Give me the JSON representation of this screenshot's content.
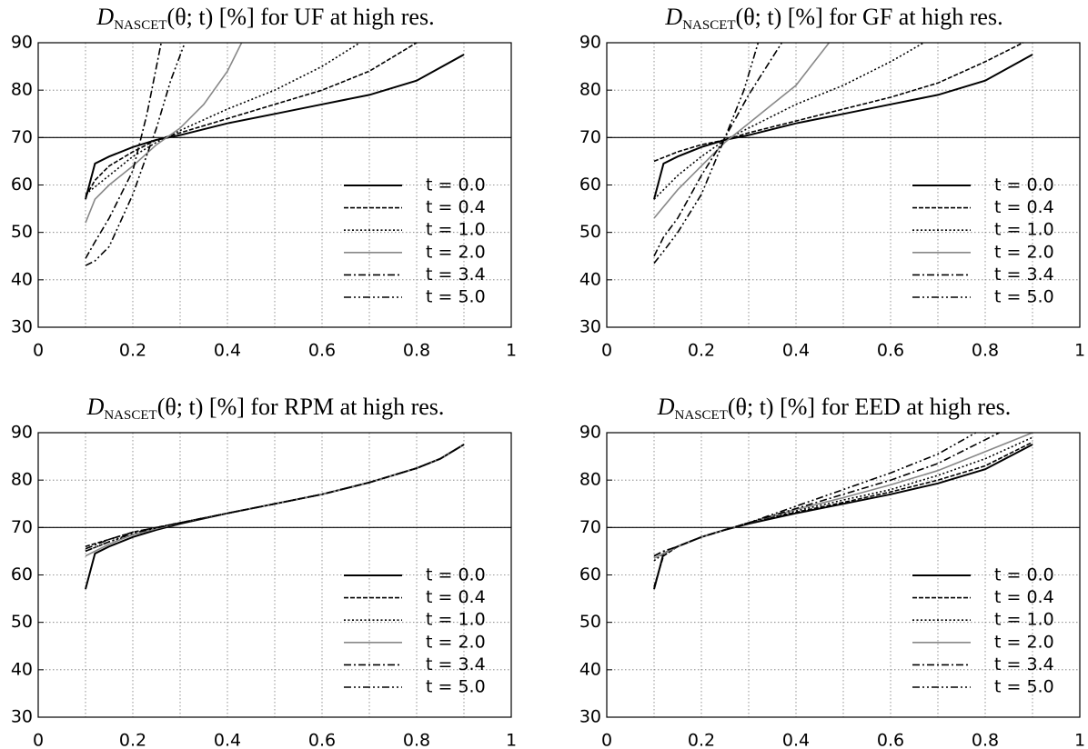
{
  "chart_data": [
    {
      "type": "line",
      "title_parts": [
        "D",
        "NASCET",
        "(θ; t) [%] for UF at high res."
      ],
      "xlim": [
        0,
        1
      ],
      "xticks": [
        0,
        0.2,
        0.4,
        0.6,
        0.8,
        1
      ],
      "xgrid": [
        0.1,
        0.3,
        0.5,
        0.7,
        0.9
      ],
      "ylim": [
        30,
        90
      ],
      "yticks": [
        30,
        40,
        50,
        60,
        70,
        80,
        90
      ],
      "grid": true,
      "hline": 70,
      "legend": "lower right",
      "series": [
        {
          "name": "t = 0.0",
          "color": "#000000",
          "style": "solid",
          "x": [
            0.1,
            0.12,
            0.15,
            0.2,
            0.25,
            0.3,
            0.4,
            0.5,
            0.6,
            0.7,
            0.8,
            0.9
          ],
          "values": [
            57,
            64.5,
            66,
            68,
            69.5,
            70.5,
            73,
            75,
            77,
            79,
            82,
            87.5
          ]
        },
        {
          "name": "t = 0.4",
          "color": "#000000",
          "style": "dashed",
          "x": [
            0.1,
            0.12,
            0.15,
            0.2,
            0.25,
            0.3,
            0.4,
            0.5,
            0.6,
            0.7,
            0.8
          ],
          "values": [
            57.5,
            61,
            64,
            67,
            69.5,
            71,
            74,
            77,
            80,
            84,
            90
          ]
        },
        {
          "name": "t = 1.0",
          "color": "#000000",
          "style": "dotted",
          "x": [
            0.1,
            0.15,
            0.2,
            0.25,
            0.3,
            0.4,
            0.5,
            0.6,
            0.68
          ],
          "values": [
            58,
            62,
            66,
            69,
            71.5,
            76,
            80,
            85,
            90
          ]
        },
        {
          "name": "t = 2.0",
          "color": "#888888",
          "style": "solid",
          "x": [
            0.1,
            0.12,
            0.15,
            0.2,
            0.25,
            0.3,
            0.35,
            0.4,
            0.43
          ],
          "values": [
            52,
            57,
            60,
            64,
            68.5,
            72,
            77,
            84,
            90
          ]
        },
        {
          "name": "t = 3.4",
          "color": "#000000",
          "style": "dashdot",
          "x": [
            0.1,
            0.12,
            0.15,
            0.2,
            0.23,
            0.26
          ],
          "values": [
            44.5,
            48,
            53,
            63,
            75,
            90
          ]
        },
        {
          "name": "t = 5.0",
          "color": "#000000",
          "style": "dashdotdot",
          "x": [
            0.1,
            0.12,
            0.15,
            0.2,
            0.25,
            0.28,
            0.31
          ],
          "values": [
            43,
            44,
            47,
            58,
            72,
            82,
            90
          ]
        }
      ]
    },
    {
      "type": "line",
      "title_parts": [
        "D",
        "NASCET",
        "(θ; t) [%] for GF at high res."
      ],
      "xlim": [
        0,
        1
      ],
      "xticks": [
        0,
        0.2,
        0.4,
        0.6,
        0.8,
        1
      ],
      "xgrid": [
        0.1,
        0.3,
        0.5,
        0.7,
        0.9
      ],
      "ylim": [
        30,
        90
      ],
      "yticks": [
        30,
        40,
        50,
        60,
        70,
        80,
        90
      ],
      "grid": true,
      "hline": 70,
      "legend": "lower right",
      "series": [
        {
          "name": "t = 0.0",
          "color": "#000000",
          "style": "solid",
          "x": [
            0.1,
            0.12,
            0.15,
            0.2,
            0.25,
            0.3,
            0.4,
            0.5,
            0.6,
            0.7,
            0.8,
            0.9
          ],
          "values": [
            57,
            64.5,
            66,
            68,
            69.5,
            70.5,
            73,
            75,
            77,
            79,
            82,
            87.5
          ]
        },
        {
          "name": "t = 0.4",
          "color": "#000000",
          "style": "dashed",
          "x": [
            0.1,
            0.15,
            0.2,
            0.25,
            0.3,
            0.4,
            0.5,
            0.6,
            0.7,
            0.8,
            0.88
          ],
          "values": [
            65,
            67,
            68.5,
            69.5,
            71,
            73.5,
            76,
            78.5,
            81.5,
            86,
            90
          ]
        },
        {
          "name": "t = 1.0",
          "color": "#000000",
          "style": "dotted",
          "x": [
            0.1,
            0.15,
            0.2,
            0.25,
            0.3,
            0.4,
            0.5,
            0.6,
            0.67
          ],
          "values": [
            57,
            62,
            66,
            69.5,
            72,
            77,
            81,
            86,
            90
          ]
        },
        {
          "name": "t = 2.0",
          "color": "#888888",
          "style": "solid",
          "x": [
            0.1,
            0.15,
            0.2,
            0.25,
            0.3,
            0.35,
            0.4,
            0.47
          ],
          "values": [
            53,
            59,
            64,
            69,
            73,
            77,
            81,
            90
          ]
        },
        {
          "name": "t = 3.4",
          "color": "#000000",
          "style": "dashdot",
          "x": [
            0.1,
            0.12,
            0.15,
            0.2,
            0.25,
            0.3,
            0.37
          ],
          "values": [
            45,
            49,
            53,
            62,
            70,
            79,
            90
          ]
        },
        {
          "name": "t = 5.0",
          "color": "#000000",
          "style": "dashdotdot",
          "x": [
            0.1,
            0.12,
            0.15,
            0.2,
            0.25,
            0.29,
            0.32
          ],
          "values": [
            43.5,
            46,
            50,
            58,
            70,
            80,
            90
          ]
        }
      ]
    },
    {
      "type": "line",
      "title_parts": [
        "D",
        "NASCET",
        "(θ; t) [%] for RPM at high res."
      ],
      "xlim": [
        0,
        1
      ],
      "xticks": [
        0,
        0.2,
        0.4,
        0.6,
        0.8,
        1
      ],
      "xgrid": [
        0.1,
        0.3,
        0.5,
        0.7,
        0.9
      ],
      "ylim": [
        30,
        90
      ],
      "yticks": [
        30,
        40,
        50,
        60,
        70,
        80,
        90
      ],
      "grid": true,
      "hline": 70,
      "legend": "lower right",
      "series": [
        {
          "name": "t = 0.0",
          "color": "#000000",
          "style": "solid",
          "x": [
            0.1,
            0.12,
            0.15,
            0.2,
            0.25,
            0.3,
            0.4,
            0.5,
            0.6,
            0.7,
            0.8,
            0.85,
            0.9
          ],
          "values": [
            57,
            64.5,
            66,
            68,
            69.5,
            70.8,
            73,
            75,
            77,
            79.5,
            82.5,
            84.5,
            87.5
          ]
        },
        {
          "name": "t = 0.4",
          "color": "#000000",
          "style": "dashed",
          "x": [
            0.1,
            0.15,
            0.2,
            0.3,
            0.4,
            0.5,
            0.6,
            0.7,
            0.8,
            0.85,
            0.9
          ],
          "values": [
            66,
            67.5,
            69,
            71,
            73,
            75,
            77,
            79.5,
            82.5,
            84.5,
            87.5
          ]
        },
        {
          "name": "t = 1.0",
          "color": "#000000",
          "style": "dotted",
          "x": [
            0.1,
            0.15,
            0.2,
            0.3,
            0.4,
            0.5,
            0.6,
            0.7,
            0.8,
            0.85,
            0.9
          ],
          "values": [
            65,
            67,
            68.5,
            71,
            73,
            75,
            77,
            79.5,
            82.5,
            84.5,
            87.5
          ]
        },
        {
          "name": "t = 2.0",
          "color": "#888888",
          "style": "solid",
          "x": [
            0.1,
            0.15,
            0.2,
            0.3,
            0.4,
            0.5,
            0.6,
            0.7,
            0.8,
            0.85,
            0.9
          ],
          "values": [
            64,
            66.5,
            68.5,
            71,
            73,
            75,
            77,
            79.5,
            82.5,
            84.5,
            87.5
          ]
        },
        {
          "name": "t = 3.4",
          "color": "#000000",
          "style": "dashdot",
          "x": [
            0.1,
            0.15,
            0.2,
            0.3,
            0.4,
            0.5,
            0.6,
            0.7,
            0.8,
            0.85,
            0.9
          ],
          "values": [
            65.5,
            67.5,
            69,
            71,
            73,
            75,
            77,
            79.5,
            82.5,
            84.5,
            87.5
          ]
        },
        {
          "name": "t = 5.0",
          "color": "#000000",
          "style": "dashdotdot",
          "x": [
            0.1,
            0.15,
            0.2,
            0.3,
            0.4,
            0.5,
            0.6,
            0.7,
            0.8,
            0.85,
            0.9
          ],
          "values": [
            65,
            67,
            68.8,
            71,
            73,
            75,
            77,
            79.5,
            82.5,
            84.5,
            87.5
          ]
        }
      ]
    },
    {
      "type": "line",
      "title_parts": [
        "D",
        "NASCET",
        "(θ; t) [%] for EED at high res."
      ],
      "xlim": [
        0,
        1
      ],
      "xticks": [
        0,
        0.2,
        0.4,
        0.6,
        0.8,
        1
      ],
      "xgrid": [
        0.1,
        0.3,
        0.5,
        0.7,
        0.9
      ],
      "ylim": [
        30,
        90
      ],
      "yticks": [
        30,
        40,
        50,
        60,
        70,
        80,
        90
      ],
      "grid": true,
      "hline": 70,
      "legend": "lower right",
      "series": [
        {
          "name": "t = 0.0",
          "color": "#000000",
          "style": "solid",
          "x": [
            0.1,
            0.12,
            0.15,
            0.2,
            0.25,
            0.3,
            0.4,
            0.5,
            0.6,
            0.7,
            0.8,
            0.9
          ],
          "values": [
            57,
            64.5,
            66,
            68,
            69.5,
            70.8,
            73,
            75,
            77,
            79.3,
            82.3,
            87.5
          ]
        },
        {
          "name": "t = 0.4",
          "color": "#000000",
          "style": "dashed",
          "x": [
            0.1,
            0.12,
            0.15,
            0.2,
            0.3,
            0.4,
            0.5,
            0.6,
            0.7,
            0.8,
            0.9
          ],
          "values": [
            57.5,
            64,
            66,
            68,
            71,
            73.2,
            75.3,
            77.5,
            80,
            83,
            88
          ]
        },
        {
          "name": "t = 1.0",
          "color": "#000000",
          "style": "dotted",
          "x": [
            0.1,
            0.12,
            0.15,
            0.2,
            0.3,
            0.4,
            0.5,
            0.6,
            0.7,
            0.8,
            0.9
          ],
          "values": [
            63,
            64.5,
            66,
            68,
            71,
            73.5,
            75.8,
            78,
            81,
            84.5,
            89
          ]
        },
        {
          "name": "t = 2.0",
          "color": "#888888",
          "style": "solid",
          "x": [
            0.1,
            0.12,
            0.15,
            0.2,
            0.3,
            0.4,
            0.5,
            0.6,
            0.7,
            0.8,
            0.9
          ],
          "values": [
            63.5,
            64.5,
            66,
            68,
            71,
            73.8,
            76.3,
            79,
            82,
            86,
            90
          ]
        },
        {
          "name": "t = 3.4",
          "color": "#000000",
          "style": "dashdot",
          "x": [
            0.1,
            0.12,
            0.15,
            0.2,
            0.3,
            0.4,
            0.5,
            0.6,
            0.7,
            0.8,
            0.83
          ],
          "values": [
            64,
            65,
            66,
            68,
            71,
            74,
            77,
            80,
            83.5,
            88.5,
            90
          ]
        },
        {
          "name": "t = 5.0",
          "color": "#000000",
          "style": "dashdotdot",
          "x": [
            0.1,
            0.12,
            0.15,
            0.2,
            0.3,
            0.4,
            0.5,
            0.6,
            0.7,
            0.78
          ],
          "values": [
            64,
            65,
            66,
            68,
            71,
            74.5,
            78,
            81.5,
            85.5,
            90
          ]
        }
      ]
    }
  ]
}
